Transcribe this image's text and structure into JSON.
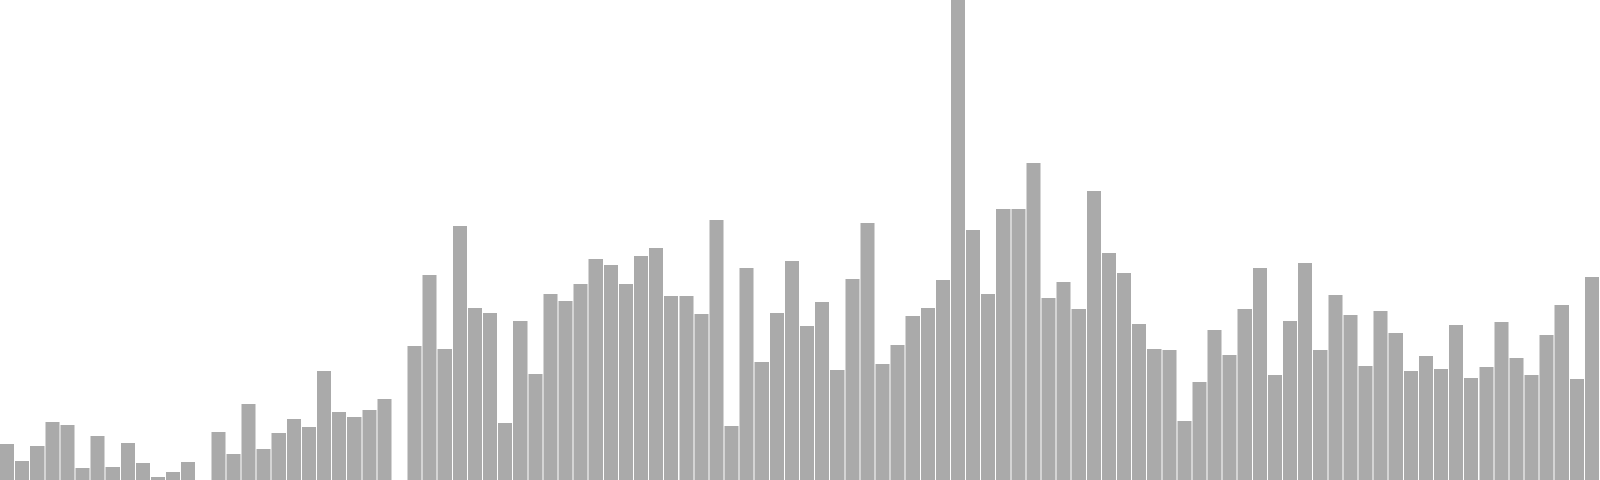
{
  "chart_data": {
    "type": "bar",
    "title": "",
    "xlabel": "",
    "ylabel": "",
    "grid": false,
    "legend": "none",
    "axes_visible": false,
    "ylim": [
      0,
      480
    ],
    "colors": {
      "bar": "#aaaaaa",
      "gap": "#ffffff",
      "background": "#ffffff"
    },
    "values": [
      36,
      19,
      34,
      58,
      55,
      12,
      44,
      13,
      37,
      17,
      3,
      8,
      18,
      0,
      48,
      26,
      76,
      31,
      47,
      61,
      53,
      109,
      68,
      63,
      70,
      81,
      0,
      134,
      205,
      131,
      254,
      172,
      167,
      57,
      159,
      106,
      186,
      179,
      196,
      221,
      215,
      196,
      224,
      232,
      184,
      184,
      166,
      260,
      54,
      212,
      118,
      167,
      219,
      154,
      178,
      110,
      201,
      257,
      116,
      135,
      164,
      172,
      200,
      480,
      250,
      186,
      271,
      271,
      317,
      182,
      198,
      171,
      289,
      227,
      207,
      156,
      131,
      130,
      59,
      98,
      150,
      125,
      171,
      212,
      105,
      159,
      217,
      130,
      185,
      165,
      114,
      169,
      147,
      109,
      124,
      111,
      155,
      102,
      113,
      158,
      122,
      105,
      145,
      175,
      101,
      203
    ]
  }
}
